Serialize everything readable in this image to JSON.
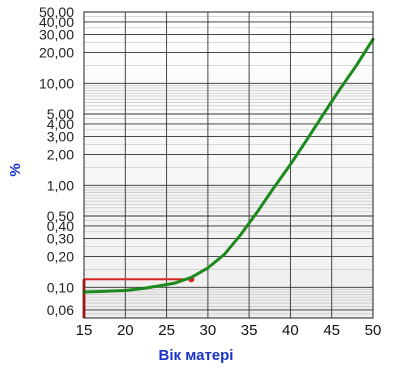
{
  "chart_data": {
    "type": "line",
    "ylabel": "%",
    "xlabel": "Вік матері",
    "x_ticks": [
      "15",
      "20",
      "25",
      "30",
      "35",
      "40",
      "45",
      "50"
    ],
    "y_ticks": [
      {
        "value": 50,
        "label": "50,00"
      },
      {
        "value": 40,
        "label": "40,00"
      },
      {
        "value": 30,
        "label": "30,00"
      },
      {
        "value": 20,
        "label": "20,00"
      },
      {
        "value": 10,
        "label": "10,00"
      },
      {
        "value": 5,
        "label": "5,00"
      },
      {
        "value": 4,
        "label": "4,00"
      },
      {
        "value": 3,
        "label": "3,00"
      },
      {
        "value": 2,
        "label": "2,00"
      },
      {
        "value": 1,
        "label": "1,00"
      },
      {
        "value": 0.5,
        "label": "0,50"
      },
      {
        "value": 0.4,
        "label": "0,40"
      },
      {
        "value": 0.3,
        "label": "0,30"
      },
      {
        "value": 0.2,
        "label": "0,20"
      },
      {
        "value": 0.1,
        "label": "0,10"
      },
      {
        "value": 0.06,
        "label": "0,06"
      }
    ],
    "xlim": [
      15,
      50
    ],
    "ylim": [
      0.05,
      50
    ],
    "y_scale": "log",
    "grid": true,
    "series": [
      {
        "color": "#1e8a1e",
        "x": [
          15,
          17,
          20,
          22,
          24,
          26,
          28,
          30,
          32,
          34,
          36,
          38,
          40,
          42,
          44,
          46,
          48,
          50
        ],
        "y": [
          0.09,
          0.091,
          0.093,
          0.097,
          0.103,
          0.11,
          0.125,
          0.155,
          0.21,
          0.33,
          0.55,
          0.95,
          1.6,
          2.8,
          5.0,
          8.8,
          15,
          27
        ]
      }
    ],
    "marker": {
      "color": "#dd2222",
      "x": 28,
      "y": 0.12
    }
  }
}
